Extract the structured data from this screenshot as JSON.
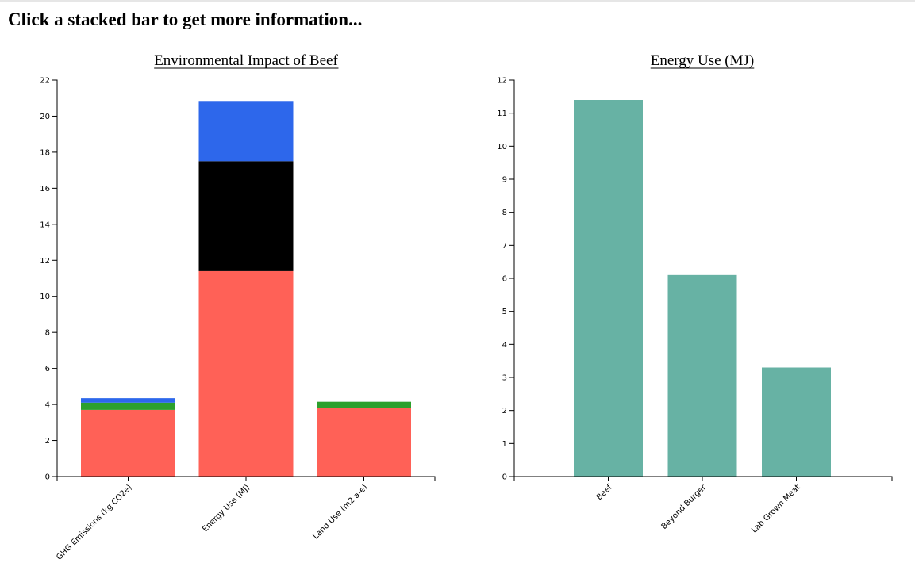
{
  "page": {
    "headline": "Click a stacked bar to get more information..."
  },
  "chart_data": [
    {
      "type": "bar",
      "stacked": true,
      "title": "Environmental Impact of Beef",
      "categories": [
        "GHG Emissions (kg CO2e)",
        "Energy Use (MJ)",
        "Land Use (m2 a-e)"
      ],
      "series": [
        {
          "values": [
            3.7,
            11.4,
            3.8
          ],
          "color": "#ff6157"
        },
        {
          "values": [
            0.4,
            0.0,
            0.35
          ],
          "color": "#2ca02c"
        },
        {
          "values": [
            0.0,
            6.1,
            0.0
          ],
          "color": "#000000"
        },
        {
          "values": [
            0.25,
            3.3,
            0.0
          ],
          "color": "#2d67eb"
        }
      ],
      "ylim": [
        0,
        22
      ],
      "yticks": [
        0,
        2,
        4,
        6,
        8,
        10,
        12,
        14,
        16,
        18,
        20,
        22
      ],
      "xlabel": "",
      "ylabel": "",
      "grid": false,
      "legend": "none"
    },
    {
      "type": "bar",
      "title": "Energy Use (MJ)",
      "categories": [
        "Beef",
        "Beyond Burger",
        "Lab Grown Meat"
      ],
      "series": [
        {
          "values": [
            11.4,
            6.1,
            3.3
          ],
          "color": "#67b2a4"
        }
      ],
      "ylim": [
        0,
        12
      ],
      "yticks": [
        0,
        1,
        2,
        3,
        4,
        5,
        6,
        7,
        8,
        9,
        10,
        11,
        12
      ],
      "xlabel": "",
      "ylabel": "",
      "grid": false,
      "legend": "none"
    }
  ]
}
